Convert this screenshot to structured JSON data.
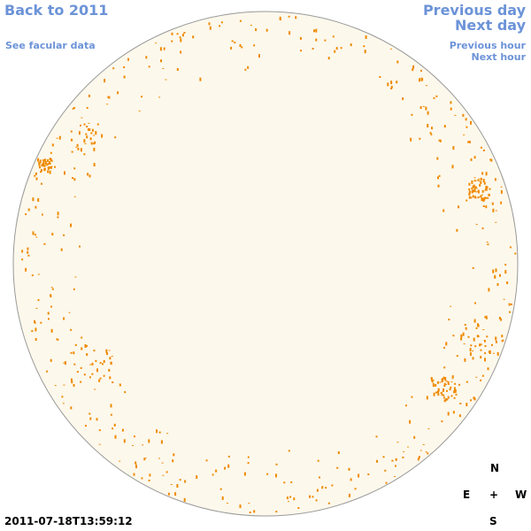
{
  "nav": {
    "back": "Back to 2011",
    "facular": "See facular data",
    "previous_day": "Previous day",
    "next_day": "Next day",
    "previous_hour": "Previous hour",
    "next_hour": "Next hour"
  },
  "timestamp": "2011-07-18T13:59:12",
  "compass": {
    "north": "N",
    "east": "E",
    "center": "+",
    "west": "W",
    "south": "S"
  }
}
